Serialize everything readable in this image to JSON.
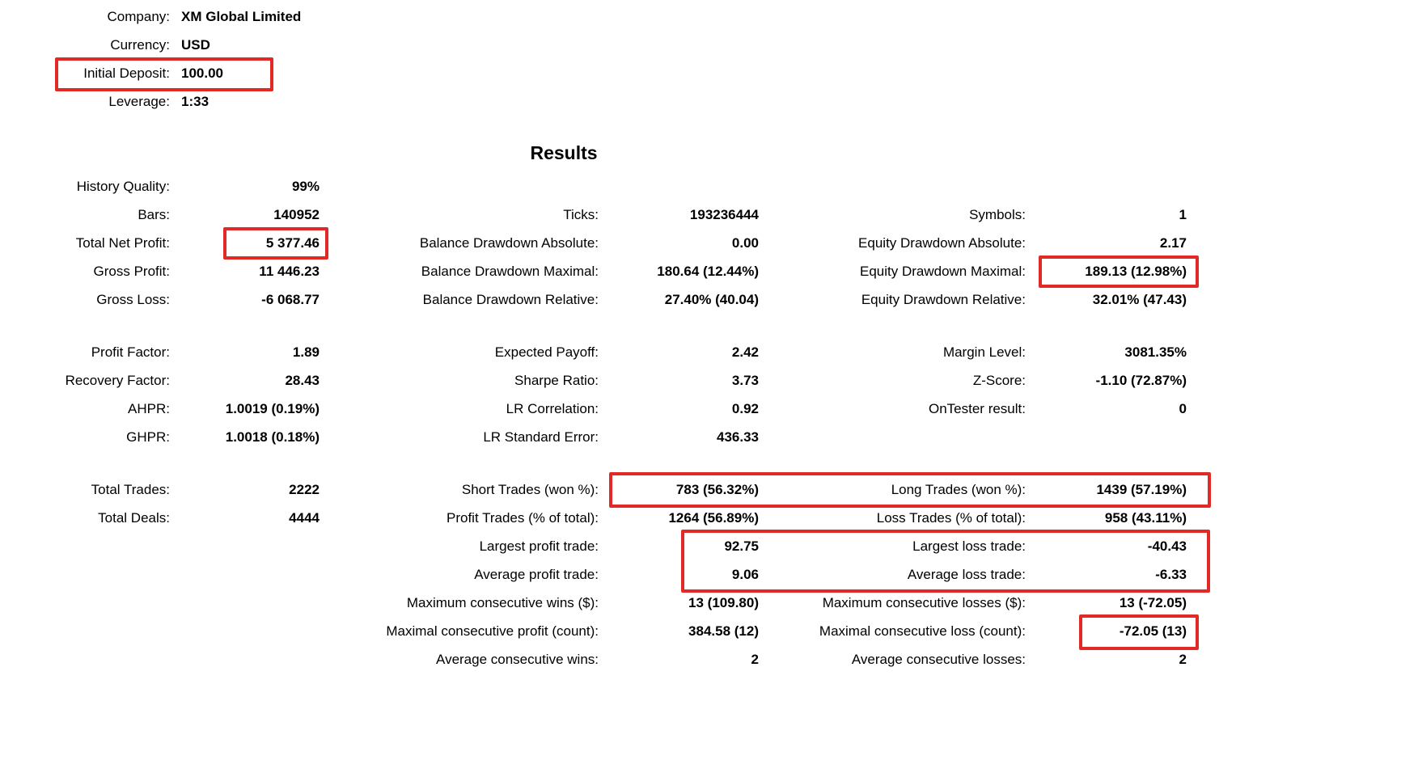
{
  "colors": {
    "highlight": "#e12a26",
    "text": "#000000",
    "background": "#ffffff"
  },
  "account": {
    "rows": [
      {
        "label": "Company:",
        "value": "XM Global Limited"
      },
      {
        "label": "Currency:",
        "value": "USD"
      },
      {
        "label": "Initial Deposit:",
        "value": "100.00",
        "highlighted": true
      },
      {
        "label": "Leverage:",
        "value": "1:33"
      }
    ]
  },
  "results": {
    "title": "Results",
    "blocks": [
      {
        "rows": [
          {
            "cells": [
              {
                "label": "History Quality:",
                "value": "99%"
              },
              {
                "label": "",
                "value": ""
              },
              {
                "label": "",
                "value": ""
              }
            ]
          },
          {
            "cells": [
              {
                "label": "Bars:",
                "value": "140952"
              },
              {
                "label": "Ticks:",
                "value": "193236444"
              },
              {
                "label": "Symbols:",
                "value": "1"
              }
            ]
          },
          {
            "cells": [
              {
                "label": "Total Net Profit:",
                "value": "5 377.46",
                "highlighted": true
              },
              {
                "label": "Balance Drawdown Absolute:",
                "value": "0.00"
              },
              {
                "label": "Equity Drawdown Absolute:",
                "value": "2.17"
              }
            ]
          },
          {
            "cells": [
              {
                "label": "Gross Profit:",
                "value": "11 446.23"
              },
              {
                "label": "Balance Drawdown Maximal:",
                "value": "180.64 (12.44%)"
              },
              {
                "label": "Equity Drawdown Maximal:",
                "value": "189.13 (12.98%)",
                "highlighted": true
              }
            ]
          },
          {
            "cells": [
              {
                "label": "Gross Loss:",
                "value": "-6 068.77"
              },
              {
                "label": "Balance Drawdown Relative:",
                "value": "27.40% (40.04)"
              },
              {
                "label": "Equity Drawdown Relative:",
                "value": "32.01% (47.43)"
              }
            ]
          }
        ]
      },
      {
        "rows": [
          {
            "cells": [
              {
                "label": "Profit Factor:",
                "value": "1.89"
              },
              {
                "label": "Expected Payoff:",
                "value": "2.42"
              },
              {
                "label": "Margin Level:",
                "value": "3081.35%"
              }
            ]
          },
          {
            "cells": [
              {
                "label": "Recovery Factor:",
                "value": "28.43"
              },
              {
                "label": "Sharpe Ratio:",
                "value": "3.73"
              },
              {
                "label": "Z-Score:",
                "value": "-1.10 (72.87%)"
              }
            ]
          },
          {
            "cells": [
              {
                "label": "AHPR:",
                "value": "1.0019 (0.19%)"
              },
              {
                "label": "LR Correlation:",
                "value": "0.92"
              },
              {
                "label": "OnTester result:",
                "value": "0"
              }
            ]
          },
          {
            "cells": [
              {
                "label": "GHPR:",
                "value": "1.0018 (0.18%)"
              },
              {
                "label": "LR Standard Error:",
                "value": "436.33"
              },
              {
                "label": "",
                "value": ""
              }
            ]
          }
        ]
      },
      {
        "rows": [
          {
            "cells": [
              {
                "label": "Total Trades:",
                "value": "2222"
              },
              {
                "label": "Short Trades (won %):",
                "value": "783 (56.32%)",
                "highlighted": true
              },
              {
                "label": "Long Trades (won %):",
                "value": "1439 (57.19%)",
                "highlighted": true
              }
            ]
          },
          {
            "cells": [
              {
                "label": "Total Deals:",
                "value": "4444"
              },
              {
                "label": "Profit Trades (% of total):",
                "value": "1264 (56.89%)"
              },
              {
                "label": "Loss Trades (% of total):",
                "value": "958 (43.11%)"
              }
            ]
          },
          {
            "cells": [
              {
                "label": "",
                "value": ""
              },
              {
                "label": "Largest profit trade:",
                "value": "92.75",
                "highlighted": true
              },
              {
                "label": "Largest loss trade:",
                "value": "-40.43",
                "highlighted": true
              }
            ]
          },
          {
            "cells": [
              {
                "label": "",
                "value": ""
              },
              {
                "label": "Average profit trade:",
                "value": "9.06",
                "highlighted": true
              },
              {
                "label": "Average loss trade:",
                "value": "-6.33",
                "highlighted": true
              }
            ]
          },
          {
            "cells": [
              {
                "label": "",
                "value": ""
              },
              {
                "label": "Maximum consecutive wins ($):",
                "value": "13 (109.80)"
              },
              {
                "label": "Maximum consecutive losses ($):",
                "value": "13 (-72.05)"
              }
            ]
          },
          {
            "cells": [
              {
                "label": "",
                "value": ""
              },
              {
                "label": "Maximal consecutive profit (count):",
                "value": "384.58 (12)"
              },
              {
                "label": "Maximal consecutive loss (count):",
                "value": "-72.05 (13)",
                "highlighted": true
              }
            ]
          },
          {
            "cells": [
              {
                "label": "",
                "value": ""
              },
              {
                "label": "Average consecutive wins:",
                "value": "2"
              },
              {
                "label": "Average consecutive losses:",
                "value": "2"
              }
            ]
          }
        ]
      }
    ]
  }
}
